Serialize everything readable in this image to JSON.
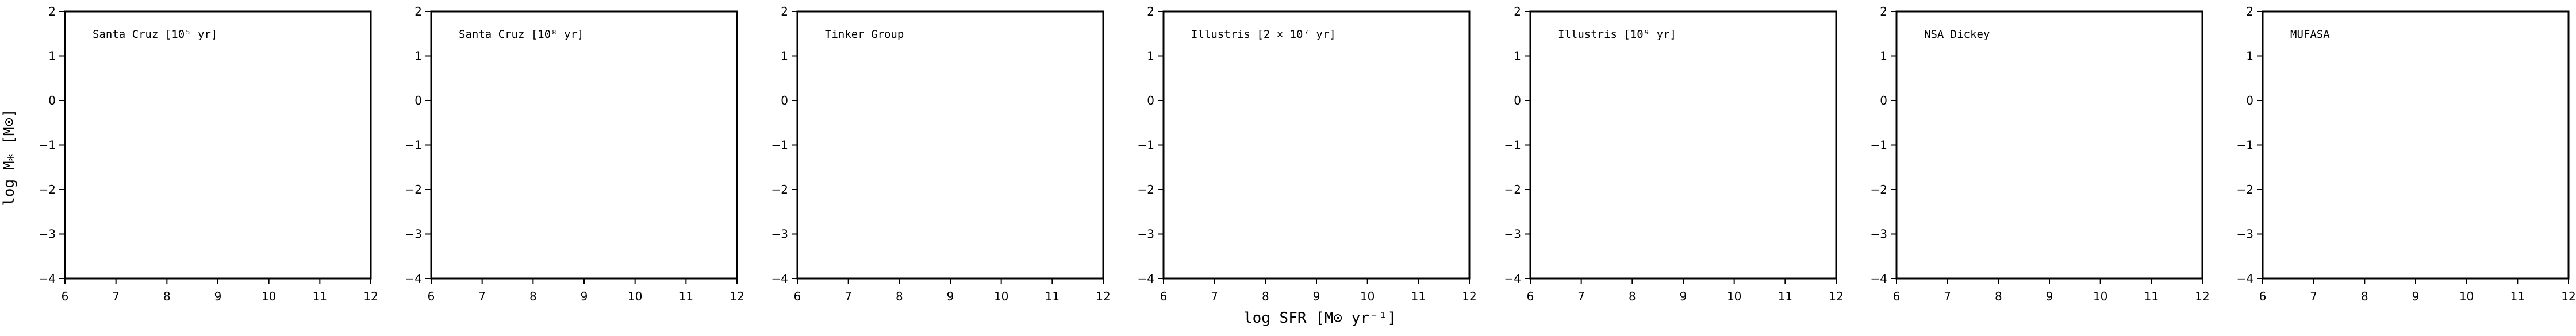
{
  "chart_data": [
    {
      "type": "scatter",
      "title": "Santa Cruz [10⁵ yr]",
      "xlim": [
        6,
        12
      ],
      "ylim": [
        -4,
        2
      ],
      "xticks": [
        "6",
        "7",
        "8",
        "9",
        "10",
        "11",
        "12"
      ],
      "yticks": [
        "2",
        "1",
        "0",
        "−1",
        "−2",
        "−3",
        "−4"
      ],
      "series": []
    },
    {
      "type": "scatter",
      "title": "Santa Cruz [10⁸ yr]",
      "xlim": [
        6,
        12
      ],
      "ylim": [
        -4,
        2
      ],
      "xticks": [
        "6",
        "7",
        "8",
        "9",
        "10",
        "11",
        "12"
      ],
      "yticks": [
        "2",
        "1",
        "0",
        "−1",
        "−2",
        "−3",
        "−4"
      ],
      "series": []
    },
    {
      "type": "scatter",
      "title": "Tinker Group",
      "xlim": [
        6,
        12
      ],
      "ylim": [
        -4,
        2
      ],
      "xticks": [
        "6",
        "7",
        "8",
        "9",
        "10",
        "11",
        "12"
      ],
      "yticks": [
        "2",
        "1",
        "0",
        "−1",
        "−2",
        "−3",
        "−4"
      ],
      "series": []
    },
    {
      "type": "scatter",
      "title": "Illustris [2 × 10⁷ yr]",
      "xlim": [
        6,
        12
      ],
      "ylim": [
        -4,
        2
      ],
      "xticks": [
        "6",
        "7",
        "8",
        "9",
        "10",
        "11",
        "12"
      ],
      "yticks": [
        "2",
        "1",
        "0",
        "−1",
        "−2",
        "−3",
        "−4"
      ],
      "series": []
    },
    {
      "type": "scatter",
      "title": "Illustris [10⁹ yr]",
      "xlim": [
        6,
        12
      ],
      "ylim": [
        -4,
        2
      ],
      "xticks": [
        "6",
        "7",
        "8",
        "9",
        "10",
        "11",
        "12"
      ],
      "yticks": [
        "2",
        "1",
        "0",
        "−1",
        "−2",
        "−3",
        "−4"
      ],
      "series": []
    },
    {
      "type": "scatter",
      "title": "NSA Dickey",
      "xlim": [
        6,
        12
      ],
      "ylim": [
        -4,
        2
      ],
      "xticks": [
        "6",
        "7",
        "8",
        "9",
        "10",
        "11",
        "12"
      ],
      "yticks": [
        "2",
        "1",
        "0",
        "−1",
        "−2",
        "−3",
        "−4"
      ],
      "series": []
    },
    {
      "type": "scatter",
      "title": "MUFASA",
      "xlim": [
        6,
        12
      ],
      "ylim": [
        -4,
        2
      ],
      "xticks": [
        "6",
        "7",
        "8",
        "9",
        "10",
        "11",
        "12"
      ],
      "yticks": [
        "2",
        "1",
        "0",
        "−1",
        "−2",
        "−3",
        "−4"
      ],
      "series": []
    }
  ],
  "figure": {
    "ylabel": "log M⁎ [M⊙]",
    "xlabel": "log SFR [M⊙ yr⁻¹]"
  }
}
